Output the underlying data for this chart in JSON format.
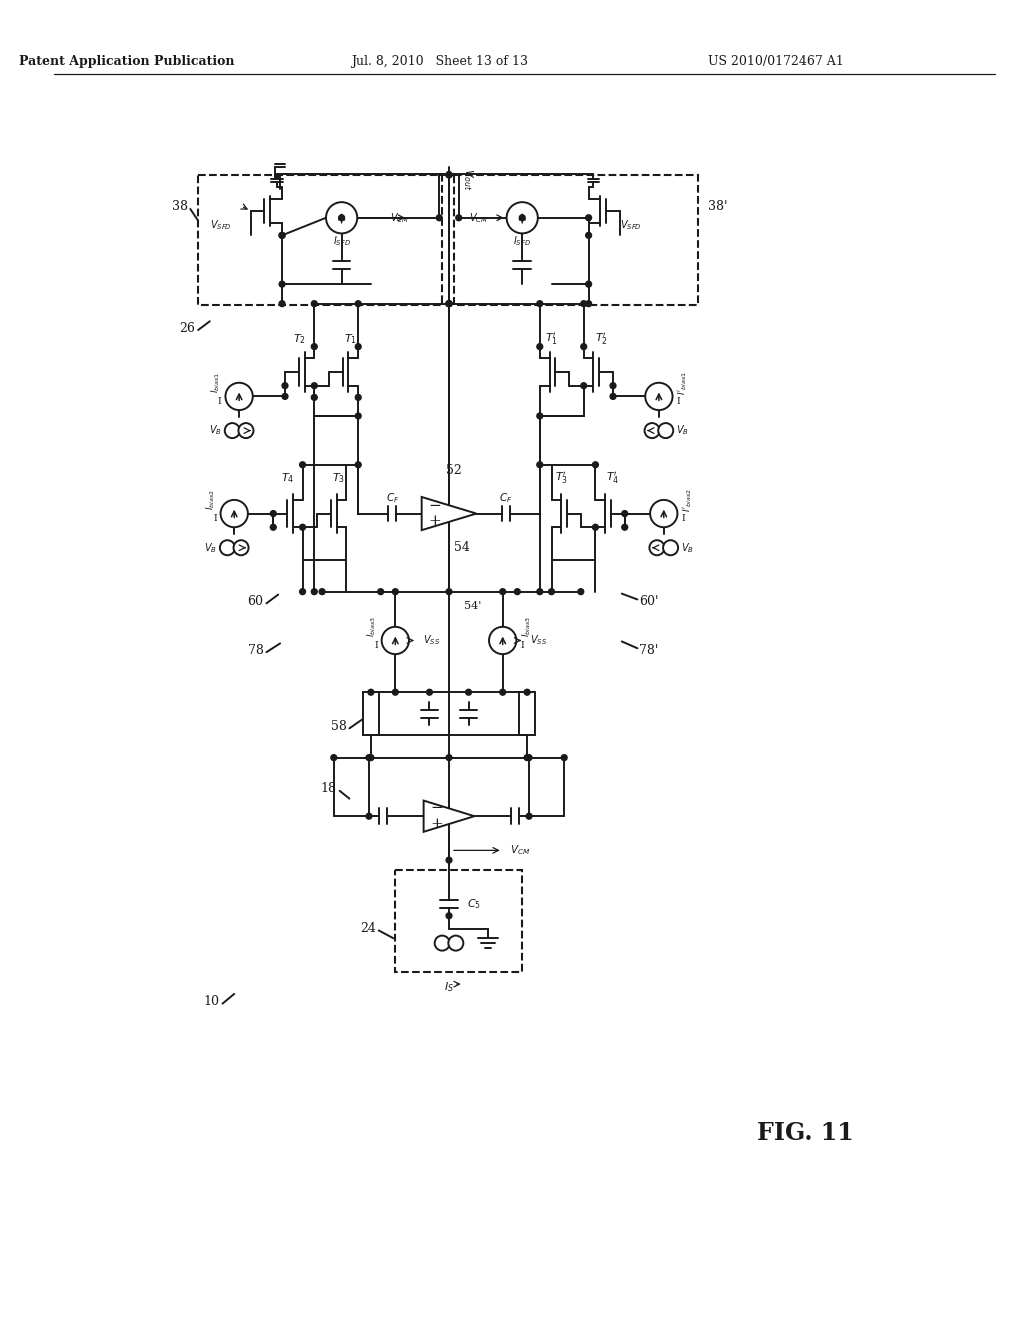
{
  "bg_color": "#ffffff",
  "line_color": "#1a1a1a",
  "header_left": "Patent Application Publication",
  "header_mid": "Jul. 8, 2010   Sheet 13 of 13",
  "header_right": "US 2010/0172467 A1",
  "fig_label": "FIG. 11"
}
